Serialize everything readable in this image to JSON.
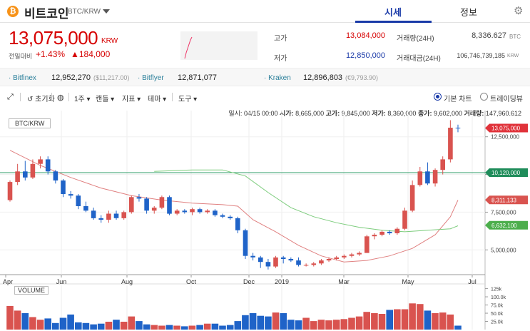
{
  "header": {
    "coin_symbol_glyph": "₿",
    "coin_name": "비트코인",
    "pair": "BTC/KRW",
    "tabs": [
      {
        "label": "시세",
        "active": true
      },
      {
        "label": "정보",
        "active": false
      }
    ]
  },
  "ticker": {
    "price": "13,075,000",
    "unit": "KRW",
    "change_label": "전일대비",
    "change_pct": "+1.43%",
    "change_amount": "▲184,000",
    "high_label": "고가",
    "high": "13,084,000",
    "low_label": "저가",
    "low": "12,850,000",
    "vol24_label": "거래량(24H)",
    "vol24": "8,336.627",
    "vol24_unit": "BTC",
    "amt24_label": "거래대금(24H)",
    "amt24": "106,746,739,185",
    "amt24_unit": "KRW"
  },
  "exchanges": [
    {
      "name": "Bitfinex",
      "price": "12,952,270",
      "usd": "($11,217.00)"
    },
    {
      "name": "Bitflyer",
      "price": "12,871,077",
      "usd": ""
    },
    {
      "name": "Kraken",
      "price": "12,896,803",
      "usd": "(€9,793.90)"
    }
  ],
  "toolbar": {
    "reset": "초기화",
    "period": "1주",
    "candle": "캔들",
    "indicator": "지표",
    "theme": "테마",
    "tools": "도구",
    "basic_chart": "기본 차트",
    "trading_view": "트레이딩뷰"
  },
  "ohlc": {
    "date_label": "일시:",
    "date": "04/15 00:00",
    "open_label": "시가:",
    "open": "8,665,000",
    "high_label": "고가:",
    "high": "9,845,000",
    "low_label": "저가:",
    "low": "8,360,000",
    "close_label": "종가:",
    "close": "9,602,000",
    "vol_label": "거래량:",
    "vol": "147,960.612"
  },
  "chart_data": {
    "type": "candlestick",
    "title": "BTC/KRW",
    "volume_label": "VOLUME",
    "x_tick_labels": [
      "Apr",
      "Jun",
      "Aug",
      "Oct",
      "Dec",
      "2019",
      "Mar",
      "May",
      "Jul"
    ],
    "y_tick_labels": [
      "12,500,000",
      "10,000,000",
      "7,500,000",
      "5,000,000"
    ],
    "y_ticks": [
      12500000,
      10000000,
      7500000,
      5000000
    ],
    "ylim": [
      3500000,
      14000000
    ],
    "volume_tick_labels": [
      "125k",
      "100.0k",
      "75.0k",
      "50.0k",
      "25.0k"
    ],
    "volume_ticks": [
      125000,
      100000,
      75000,
      50000,
      25000
    ],
    "volume_ylim": [
      0,
      135000
    ],
    "price_tags": [
      {
        "value": 13075000,
        "label": "13,075,000",
        "color": "#e0323a"
      },
      {
        "value": 10120000,
        "label": "10,120,000",
        "color": "#1f8c5a"
      },
      {
        "value": 8311133,
        "label": "8,311,133",
        "color": "#d9534f"
      },
      {
        "value": 6632100,
        "label": "6,632,100",
        "color": "#4cae4c"
      }
    ],
    "horizontal_line": 10120000,
    "candles": [
      [
        8.3,
        9.6,
        8.2,
        9.5
      ],
      [
        9.5,
        10.7,
        9.3,
        10.2
      ],
      [
        10.2,
        10.9,
        9.6,
        9.8
      ],
      [
        9.8,
        11.0,
        9.7,
        10.7
      ],
      [
        10.7,
        11.2,
        10.4,
        11.0
      ],
      [
        11.0,
        11.2,
        10.0,
        10.2
      ],
      [
        10.2,
        10.3,
        9.4,
        9.6
      ],
      [
        9.6,
        9.7,
        8.5,
        8.7
      ],
      [
        8.7,
        8.9,
        8.4,
        8.6
      ],
      [
        8.6,
        8.7,
        7.7,
        7.9
      ],
      [
        7.9,
        8.2,
        7.5,
        7.6
      ],
      [
        7.6,
        7.8,
        7.0,
        7.1
      ],
      [
        7.1,
        7.3,
        6.8,
        7.0
      ],
      [
        7.0,
        7.6,
        6.8,
        7.4
      ],
      [
        7.4,
        7.6,
        7.0,
        7.1
      ],
      [
        7.1,
        7.6,
        7.0,
        7.5
      ],
      [
        7.5,
        8.6,
        7.4,
        8.5
      ],
      [
        8.5,
        8.7,
        8.2,
        8.4
      ],
      [
        8.4,
        8.5,
        7.4,
        7.6
      ],
      [
        7.6,
        7.9,
        7.4,
        7.8
      ],
      [
        7.8,
        8.6,
        7.7,
        8.5
      ],
      [
        8.5,
        8.6,
        7.3,
        7.4
      ],
      [
        7.4,
        7.7,
        7.3,
        7.6
      ],
      [
        7.6,
        7.7,
        7.4,
        7.5
      ],
      [
        7.5,
        7.8,
        7.3,
        7.7
      ],
      [
        7.7,
        7.8,
        7.4,
        7.5
      ],
      [
        7.5,
        7.7,
        7.4,
        7.6
      ],
      [
        7.6,
        7.7,
        7.2,
        7.3
      ],
      [
        7.3,
        7.4,
        7.1,
        7.2
      ],
      [
        7.2,
        7.3,
        7.0,
        7.1
      ],
      [
        7.1,
        7.2,
        6.1,
        6.3
      ],
      [
        6.3,
        6.4,
        4.4,
        4.6
      ],
      [
        4.6,
        4.8,
        4.3,
        4.5
      ],
      [
        4.5,
        4.6,
        3.8,
        4.2
      ],
      [
        4.2,
        4.4,
        3.7,
        3.9
      ],
      [
        3.9,
        4.6,
        3.8,
        4.5
      ],
      [
        4.5,
        4.6,
        4.1,
        4.4
      ],
      [
        4.4,
        4.5,
        4.2,
        4.3
      ],
      [
        4.3,
        4.5,
        3.9,
        4.0
      ],
      [
        4.0,
        4.1,
        3.9,
        4.0
      ],
      [
        4.0,
        4.2,
        3.9,
        4.1
      ],
      [
        4.1,
        4.4,
        4.0,
        4.3
      ],
      [
        4.3,
        4.5,
        4.2,
        4.4
      ],
      [
        4.4,
        4.6,
        4.3,
        4.5
      ],
      [
        4.5,
        4.7,
        4.4,
        4.6
      ],
      [
        4.6,
        4.8,
        4.5,
        4.7
      ],
      [
        4.7,
        4.9,
        4.6,
        4.8
      ],
      [
        4.8,
        6.0,
        4.8,
        5.9
      ],
      [
        5.9,
        6.1,
        5.7,
        6.0
      ],
      [
        6.0,
        6.3,
        5.9,
        6.2
      ],
      [
        6.2,
        6.3,
        6.0,
        6.1
      ],
      [
        6.1,
        6.5,
        6.0,
        6.4
      ],
      [
        6.4,
        7.8,
        6.3,
        7.6
      ],
      [
        7.6,
        9.6,
        7.5,
        9.3
      ],
      [
        9.3,
        10.5,
        9.2,
        10.2
      ],
      [
        10.2,
        10.8,
        9.3,
        9.4
      ],
      [
        9.4,
        10.4,
        9.2,
        10.3
      ],
      [
        10.3,
        11.2,
        10.0,
        11.0
      ],
      [
        11.0,
        13.6,
        10.8,
        13.1
      ],
      [
        13.1,
        13.3,
        12.8,
        13.08
      ]
    ],
    "volumes": [
      72,
      58,
      50,
      38,
      30,
      34,
      20,
      36,
      46,
      22,
      20,
      16,
      18,
      24,
      30,
      24,
      40,
      26,
      16,
      14,
      12,
      14,
      12,
      10,
      12,
      14,
      18,
      18,
      12,
      14,
      26,
      44,
      50,
      42,
      40,
      52,
      50,
      30,
      28,
      36,
      26,
      30,
      28,
      30,
      32,
      36,
      40,
      54,
      50,
      48,
      60,
      62,
      62,
      80,
      78,
      58,
      50,
      52,
      46,
      12
    ],
    "ma_fast": [
      [
        0,
        11.6
      ],
      [
        4,
        10.6
      ],
      [
        8,
        9.8
      ],
      [
        12,
        9.1
      ],
      [
        16,
        8.6
      ],
      [
        20,
        8.3
      ],
      [
        24,
        8.1
      ],
      [
        28,
        8.0
      ],
      [
        30,
        7.9
      ],
      [
        32,
        7.0
      ],
      [
        35,
        6.2
      ],
      [
        38,
        5.3
      ],
      [
        41,
        4.6
      ],
      [
        44,
        4.2
      ],
      [
        47,
        4.3
      ],
      [
        50,
        4.6
      ],
      [
        53,
        5.1
      ],
      [
        56,
        6.0
      ],
      [
        58,
        7.2
      ],
      [
        59,
        8.3
      ]
    ],
    "ma_slow": [
      [
        19,
        10.2
      ],
      [
        24,
        10.3
      ],
      [
        28,
        10.3
      ],
      [
        31,
        9.9
      ],
      [
        34,
        8.8
      ],
      [
        37,
        7.8
      ],
      [
        40,
        7.2
      ],
      [
        43,
        6.8
      ],
      [
        46,
        6.5
      ],
      [
        49,
        6.3
      ],
      [
        52,
        6.2
      ],
      [
        55,
        6.3
      ],
      [
        58,
        6.4
      ],
      [
        59,
        6.6
      ]
    ],
    "colors": {
      "up": "#d9534f",
      "down": "#1f63c8",
      "ma_fast": "#e08080",
      "ma_slow": "#7ccc7c",
      "hline": "#2f9e6a"
    }
  }
}
